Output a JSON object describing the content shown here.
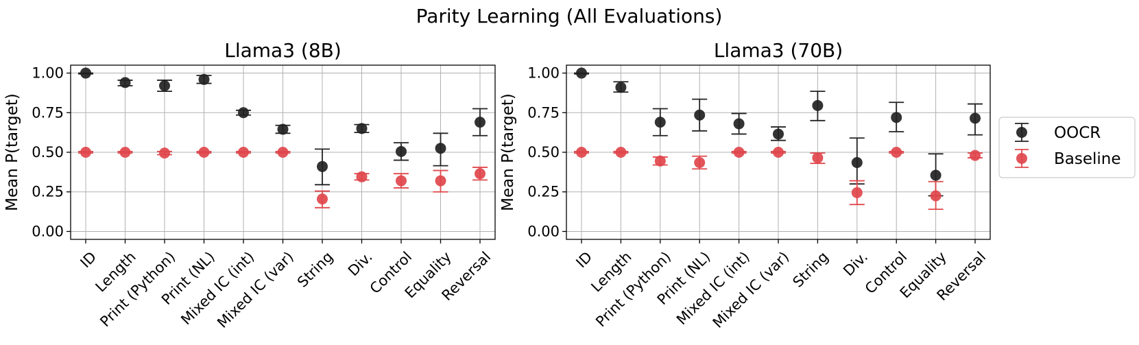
{
  "figure": {
    "suptitle": "Parity Learning (All Evaluations)",
    "legend_position": "right"
  },
  "chart_data": [
    {
      "type": "scatter",
      "title": "Llama3 (8B)",
      "ylabel": "Mean P(target)",
      "xlabel": "",
      "ylim": [
        -0.05,
        1.05
      ],
      "yticks": [
        0.0,
        0.25,
        0.5,
        0.75,
        1.0
      ],
      "ytick_labels": [
        "0.00",
        "0.25",
        "0.50",
        "0.75",
        "1.00"
      ],
      "grid": true,
      "categories": [
        "ID",
        "Length",
        "Print (Python)",
        "Print (NL)",
        "Mixed IC (int)",
        "Mixed IC (var)",
        "String",
        "Div.",
        "Control",
        "Equality",
        "Reversal"
      ],
      "series": [
        {
          "name": "OOCR",
          "color": "#222222",
          "values": [
            1.0,
            0.94,
            0.92,
            0.96,
            0.75,
            0.645,
            0.41,
            0.65,
            0.505,
            0.525,
            0.69
          ],
          "err_low": [
            0.995,
            0.92,
            0.885,
            0.935,
            0.735,
            0.62,
            0.295,
            0.625,
            0.45,
            0.415,
            0.605
          ],
          "err_high": [
            1.0,
            0.955,
            0.955,
            0.985,
            0.765,
            0.67,
            0.52,
            0.675,
            0.56,
            0.62,
            0.775
          ]
        },
        {
          "name": "Baseline",
          "color": "#e0474c",
          "values": [
            0.5,
            0.5,
            0.495,
            0.5,
            0.5,
            0.5,
            0.205,
            0.345,
            0.32,
            0.32,
            0.365
          ],
          "err_low": [
            0.495,
            0.495,
            0.485,
            0.495,
            0.495,
            0.495,
            0.15,
            0.325,
            0.275,
            0.25,
            0.325
          ],
          "err_high": [
            0.505,
            0.505,
            0.505,
            0.505,
            0.505,
            0.505,
            0.255,
            0.365,
            0.365,
            0.385,
            0.405
          ]
        }
      ]
    },
    {
      "type": "scatter",
      "title": "Llama3 (70B)",
      "ylabel": "Mean P(target)",
      "xlabel": "",
      "ylim": [
        -0.05,
        1.05
      ],
      "yticks": [
        0.0,
        0.25,
        0.5,
        0.75,
        1.0
      ],
      "ytick_labels": [
        "0.00",
        "0.25",
        "0.50",
        "0.75",
        "1.00"
      ],
      "grid": true,
      "categories": [
        "ID",
        "Length",
        "Print (Python)",
        "Print (NL)",
        "Mixed IC (int)",
        "Mixed IC (var)",
        "String",
        "Div.",
        "Control",
        "Equality",
        "Reversal"
      ],
      "series": [
        {
          "name": "OOCR",
          "color": "#222222",
          "values": [
            1.0,
            0.91,
            0.69,
            0.735,
            0.68,
            0.615,
            0.795,
            0.435,
            0.72,
            0.355,
            0.715
          ],
          "err_low": [
            0.995,
            0.88,
            0.605,
            0.635,
            0.615,
            0.575,
            0.7,
            0.3,
            0.63,
            0.225,
            0.61
          ],
          "err_high": [
            1.0,
            0.945,
            0.775,
            0.835,
            0.745,
            0.66,
            0.885,
            0.59,
            0.815,
            0.49,
            0.805
          ]
        },
        {
          "name": "Baseline",
          "color": "#e0474c",
          "values": [
            0.5,
            0.5,
            0.445,
            0.435,
            0.5,
            0.5,
            0.465,
            0.245,
            0.5,
            0.225,
            0.48
          ],
          "err_low": [
            0.495,
            0.495,
            0.42,
            0.395,
            0.495,
            0.495,
            0.43,
            0.17,
            0.495,
            0.14,
            0.465
          ],
          "err_high": [
            0.505,
            0.505,
            0.47,
            0.475,
            0.505,
            0.505,
            0.495,
            0.32,
            0.505,
            0.315,
            0.495
          ]
        }
      ]
    }
  ]
}
